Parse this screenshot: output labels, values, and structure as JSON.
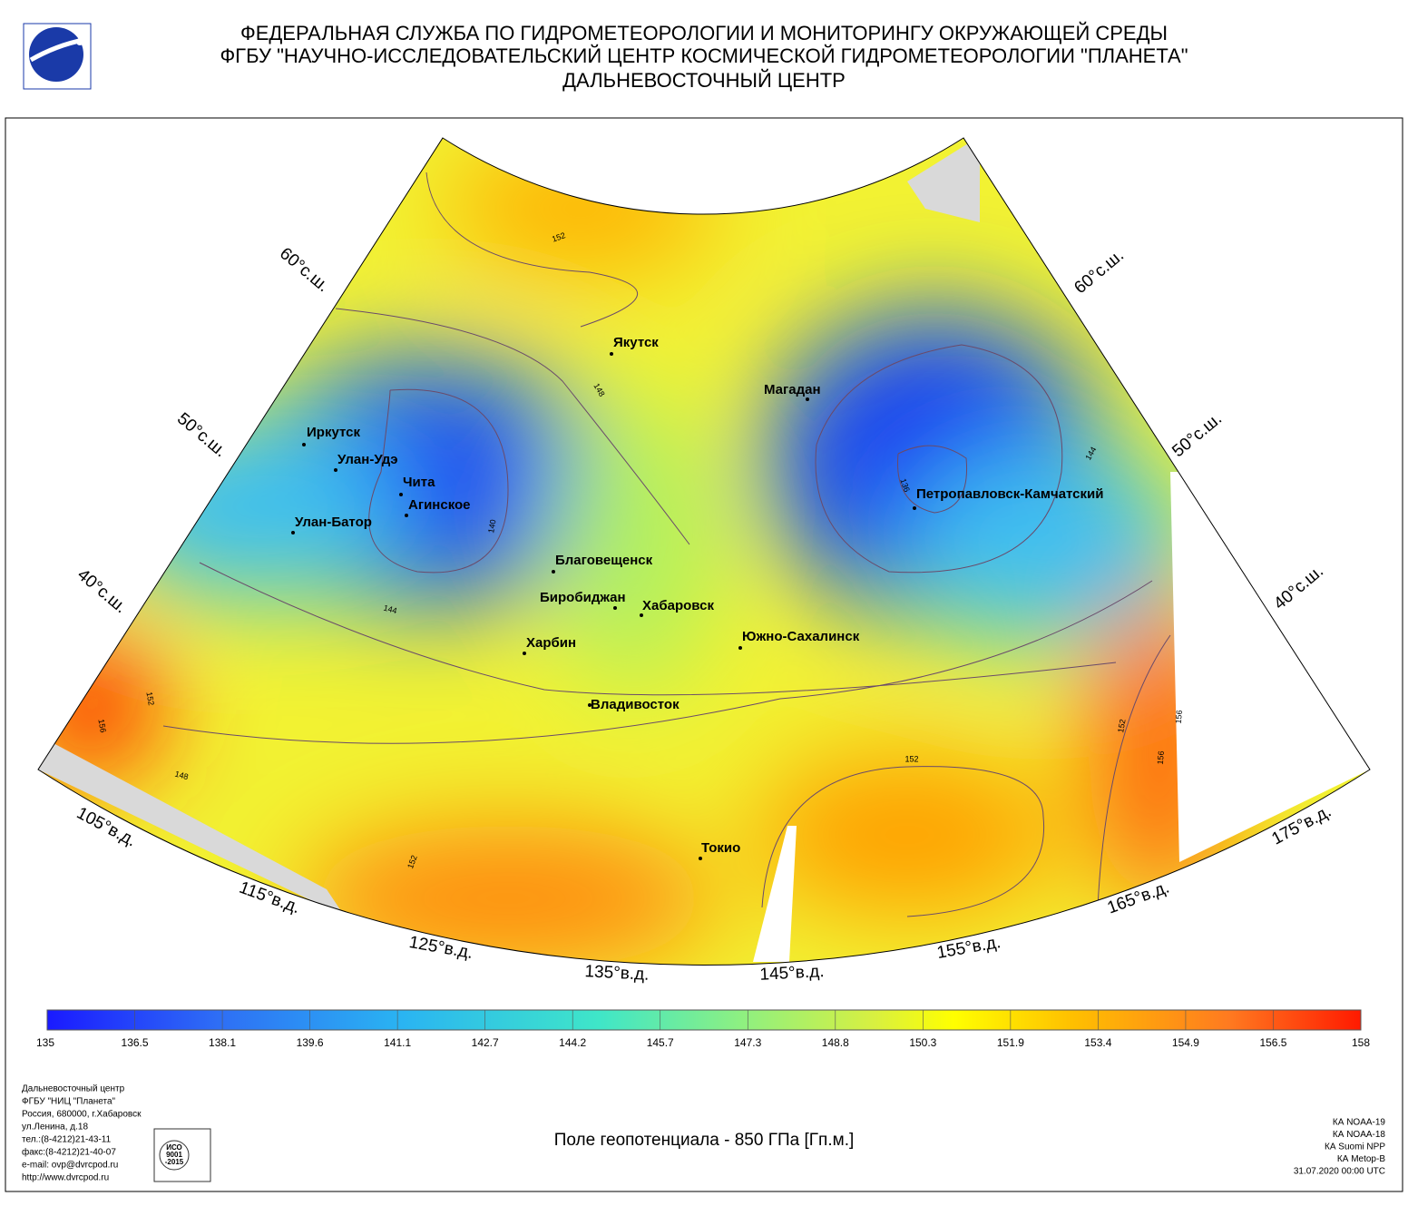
{
  "header": {
    "title_lines": [
      "ФЕДЕРАЛЬНАЯ СЛУЖБА ПО ГИДРОМЕТЕОРОЛОГИИ И МОНИТОРИНГУ ОКРУЖАЮЩЕЙ СРЕДЫ",
      "ФГБУ \"НАУЧНО-ИССЛЕДОВАТЕЛЬСКИЙ ЦЕНТР КОСМИЧЕСКОЙ ГИДРОМЕТЕОРОЛОГИИ \"ПЛАНЕТА\"",
      "ДАЛЬНЕВОСТОЧНЫЙ ЦЕНТР"
    ]
  },
  "map": {
    "cities": [
      "Якутск",
      "Магадан",
      "Иркутск",
      "Улан-Удэ",
      "Чита",
      "Агинское",
      "Улан-Батор",
      "Благовещенск",
      "Биробиджан",
      "Хабаровск",
      "Харбин",
      "Южно-Сахалинск",
      "Владивосток",
      "Токио",
      "Петропавловск-Камчатский"
    ],
    "lat_labels": [
      "60°с.ш.",
      "50°с.ш.",
      "40°с.ш.",
      "60°с.ш.",
      "50°с.ш.",
      "40°с.ш."
    ],
    "lon_labels": [
      "105°в.д.",
      "115°в.д.",
      "125°в.д.",
      "135°в.д.",
      "145°в.д.",
      "155°в.д.",
      "165°в.д.",
      "175°в.д."
    ],
    "contour_labels": [
      "152",
      "148",
      "140",
      "144",
      "152",
      "156",
      "148",
      "152",
      "152",
      "152",
      "156",
      "156",
      "136",
      "144"
    ]
  },
  "colorbar": {
    "ticks": [
      135,
      136.5,
      138.1,
      139.6,
      141.1,
      142.7,
      144.2,
      145.7,
      147.3,
      148.8,
      150.3,
      151.9,
      153.4,
      154.9,
      156.5,
      158
    ]
  },
  "footer": {
    "address_lines": [
      "Дальневосточный центр",
      "ФГБУ \"НИЦ \"Планета\"",
      "Россия, 680000, г.Хабаровск",
      "ул.Ленина, д.18",
      "тел.:(8-4212)21-43-11",
      "факс:(8-4212)21-40-07",
      "e-mail: ovp@dvrcpod.ru",
      "http://www.dvrcpod.ru"
    ],
    "certificate_lines": [
      "ИСО",
      "9001",
      "-2015"
    ],
    "caption": "Поле геопотенциала - 850 ГПа [Гп.м.]",
    "satellite_lines": [
      "КА NOAA-19",
      "КА NOAA-18",
      "КА Suomi NPP",
      "КА Metop-B",
      "31.07.2020 00:00 UTC"
    ]
  }
}
